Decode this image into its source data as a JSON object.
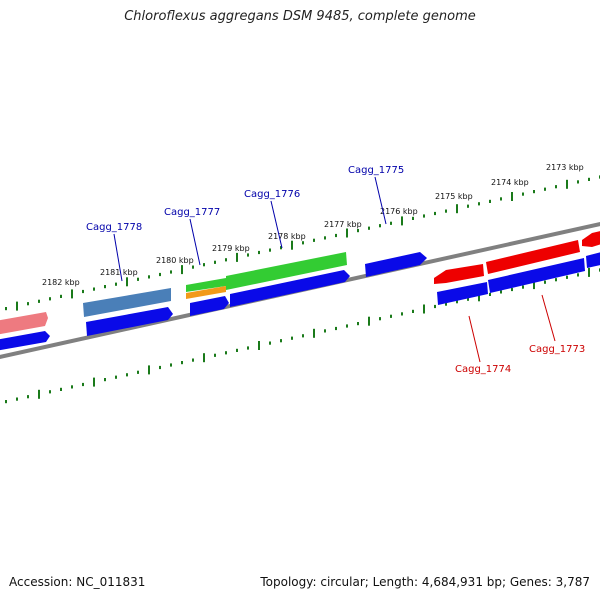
{
  "title": "Chloroflexus aggregans DSM 9485, complete genome",
  "footer": {
    "accession": "Accession: NC_011831",
    "summary": "Topology: circular; Length: 4,684,931 bp; Genes: 3,787"
  },
  "colors": {
    "backbone": "#808080",
    "tick": "#1a7a1a",
    "forward_label": "#0000aa",
    "reverse_label": "#cc0000",
    "gene_blue": "#0a0ae8",
    "gene_green": "#33cc33",
    "gene_steel": "#4a7fb8",
    "gene_red": "#ee0000",
    "gene_pink": "#ee7a80",
    "gene_orange": "#f29a1a"
  },
  "kbp_labels": [
    "2182 kbp",
    "2181 kbp",
    "2180 kbp",
    "2179 kbp",
    "2178 kbp",
    "2177 kbp",
    "2176 kbp",
    "2175 kbp",
    "2174 kbp",
    "2173 kbp"
  ],
  "gene_labels": {
    "cagg_1778": "Cagg_1778",
    "cagg_1777": "Cagg_1777",
    "cagg_1776": "Cagg_1776",
    "cagg_1775": "Cagg_1775",
    "cagg_1774": "Cagg_1774",
    "cagg_1773": "Cagg_1773"
  }
}
